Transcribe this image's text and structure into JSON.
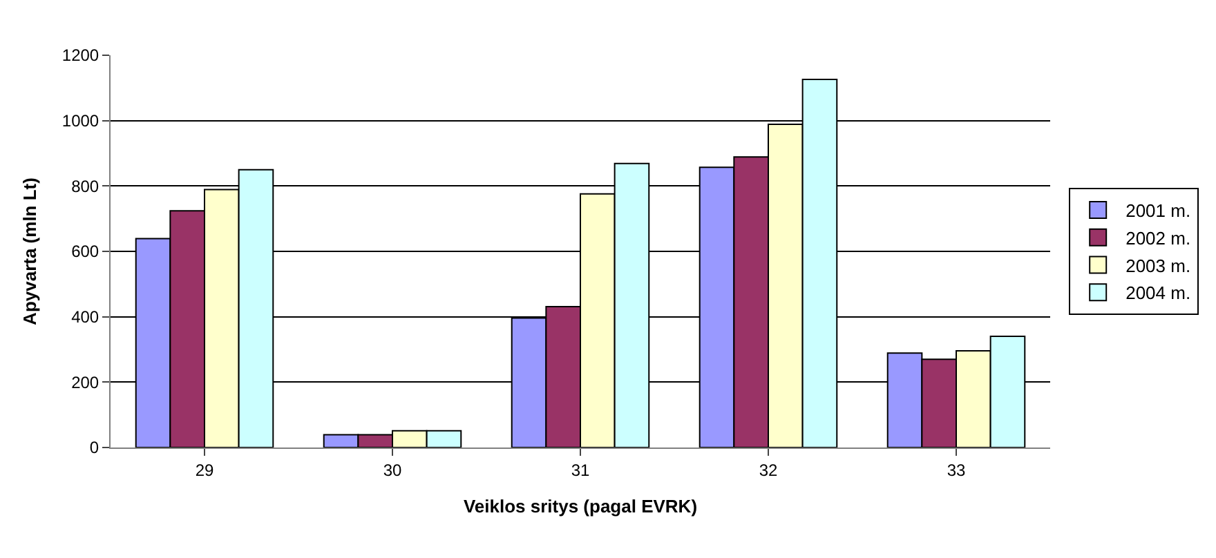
{
  "chart_data": {
    "type": "bar",
    "xlabel": "Veiklos sritys (pagal EVRK)",
    "ylabel": "Apyvarta (mln Lt)",
    "categories": [
      "29",
      "30",
      "31",
      "32",
      "33"
    ],
    "series": [
      {
        "name": "2001 m.",
        "color": "#9999ff",
        "values": [
          639,
          39,
          396,
          857,
          289
        ]
      },
      {
        "name": "2002 m.",
        "color": "#993366",
        "values": [
          724,
          39,
          431,
          889,
          270
        ]
      },
      {
        "name": "2003 m.",
        "color": "#ffffcc",
        "values": [
          789,
          51,
          776,
          989,
          296
        ]
      },
      {
        "name": "2004 m.",
        "color": "#ccffff",
        "values": [
          850,
          51,
          869,
          1126,
          340
        ]
      }
    ],
    "ylim": [
      0,
      1200
    ],
    "yticks": [
      0,
      200,
      400,
      600,
      800,
      1000,
      1200
    ],
    "grid": "y",
    "legend": "right"
  }
}
